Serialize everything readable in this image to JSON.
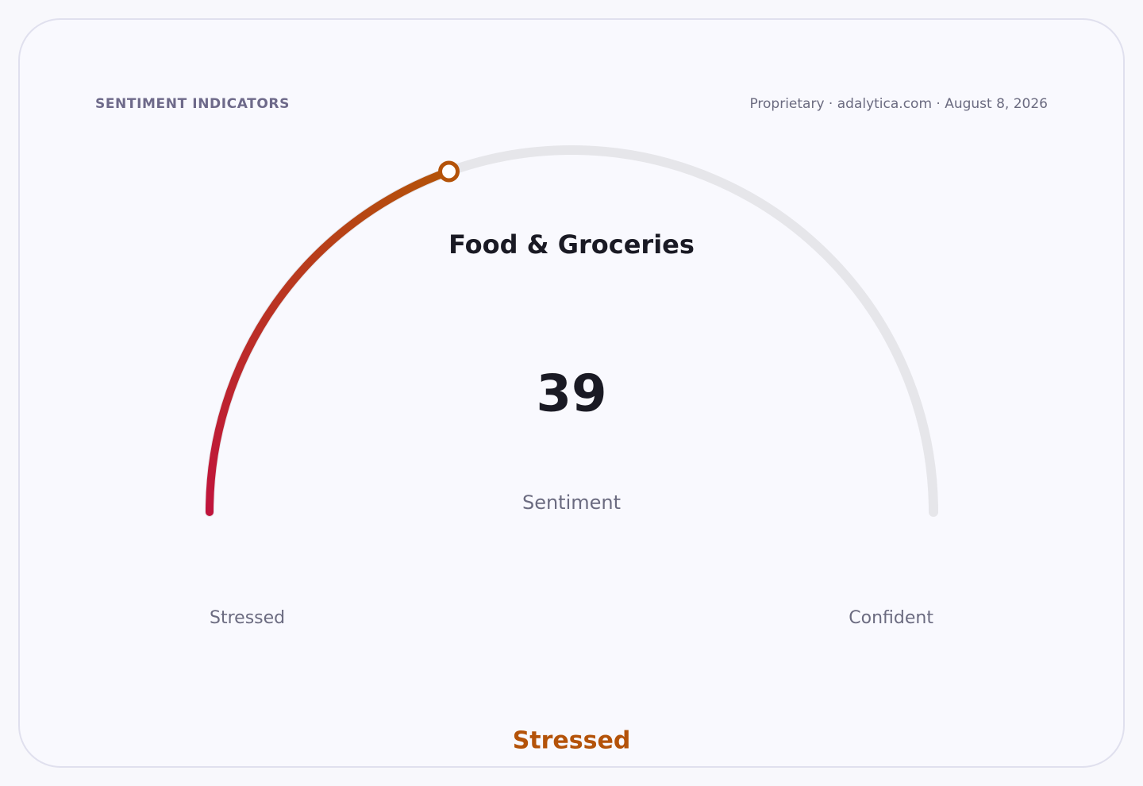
{
  "header": "SENTIMENT INDICATORS",
  "source": "Proprietary · adalytica.com · August 8, 2026",
  "chart_data": {
    "type": "gauge",
    "title": "Food & Groceries",
    "value": 39,
    "value_label": "Sentiment",
    "ylim": [
      0,
      100
    ],
    "min_label": "Stressed",
    "max_label": "Confident",
    "status": "Stressed",
    "colors": [
      "#c0143c",
      "#b45309"
    ],
    "track_color": "#e6e6ea"
  }
}
